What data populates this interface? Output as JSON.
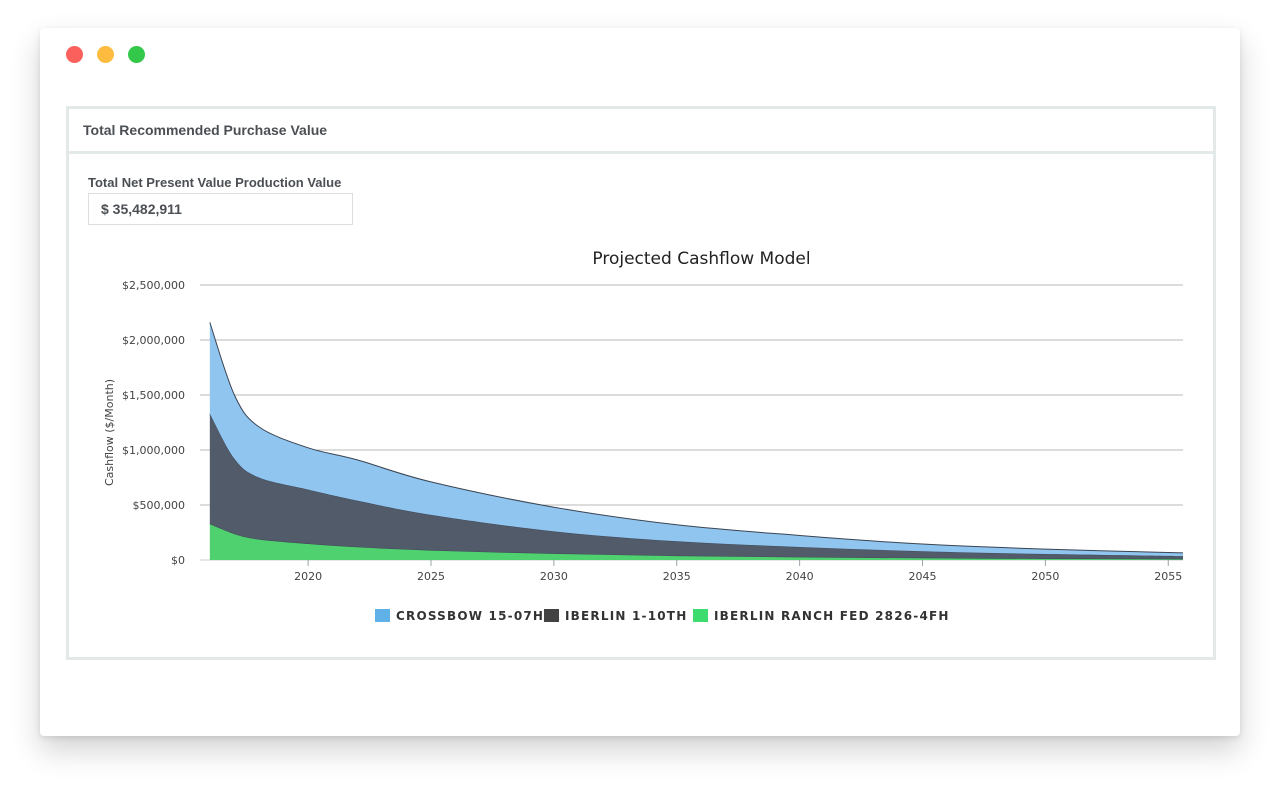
{
  "window": {
    "controls": [
      "close",
      "minimize",
      "maximize"
    ]
  },
  "panel": {
    "header": "Total Recommended Purchase Value",
    "npv_label": "Total Net Present Value Production Value",
    "npv_value": "$ 35,482,911"
  },
  "chart_data": {
    "type": "area",
    "stacked": true,
    "title": "Projected Cashflow Model",
    "xlabel": "",
    "ylabel": "Cashflow ($/Month)",
    "xlim": [
      2015.6,
      2055.6
    ],
    "ylim": [
      0,
      2500000
    ],
    "x_ticks": [
      2020,
      2025,
      2030,
      2035,
      2040,
      2045,
      2050,
      2055
    ],
    "y_ticks": [
      0,
      500000,
      1000000,
      1500000,
      2000000,
      2500000
    ],
    "y_tick_labels": [
      "$0",
      "$500,000",
      "$1,000,000",
      "$1,500,000",
      "$2,000,000",
      "$2,500,000"
    ],
    "grid": true,
    "legend_position": "bottom",
    "x": [
      2016,
      2017,
      2018,
      2020,
      2022,
      2025,
      2030,
      2035,
      2040,
      2045,
      2050,
      2055.6
    ],
    "series": [
      {
        "name": "IBERLIN RANCH FED 2826-4FH",
        "color": "#4fd16f",
        "legend_color": "#3ddc6f",
        "values": [
          330000,
          240000,
          190000,
          150000,
          120000,
          90000,
          60000,
          40000,
          28000,
          20000,
          14000,
          10000
        ]
      },
      {
        "name": "IBERLIN 1-10TH",
        "color": "#525b6a",
        "legend_color": "#434343",
        "values": [
          1000000,
          680000,
          560000,
          490000,
          420000,
          320000,
          200000,
          130000,
          90000,
          60000,
          40000,
          25000
        ]
      },
      {
        "name": "CROSSBOW 15-07H",
        "color": "#90c5f0",
        "legend_color": "#5fb1e8",
        "values": [
          830000,
          580000,
          460000,
          380000,
          370000,
          300000,
          220000,
          150000,
          105000,
          65000,
          45000,
          30000
        ]
      }
    ],
    "legend_order": [
      "CROSSBOW 15-07H",
      "IBERLIN 1-10TH",
      "IBERLIN RANCH FED 2826-4FH"
    ]
  }
}
